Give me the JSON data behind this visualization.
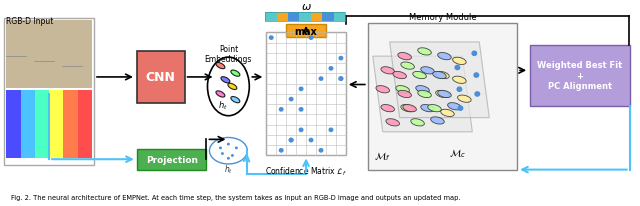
{
  "title": "",
  "caption": "2. The neural architecture of EMPNet. At each time step, the system takes as input an RGB-D image and outputs an updated map.",
  "fig_label": "Fig.",
  "background_color": "#ffffff",
  "rgb_d_label": "RGB-D Input",
  "cnn_label": "CNN",
  "cnn_color": "#e8736a",
  "point_embed_label": "Point\nEmbeddings",
  "projection_label": "Projection",
  "projection_color": "#4caf50",
  "confidence_label": "Confidence Matrix",
  "lf_label": "$\\mathcal{L}_f$",
  "memory_label": "Memory Module",
  "mf_label": "$\\mathcal{M}_f$",
  "mc_label": "$\\mathcal{M}_c$",
  "max_label": "max",
  "max_color": "#f5a623",
  "omega_label": "$\\omega$",
  "weighted_label": "Weighted Best Fit\n+\nPC Alignment",
  "weighted_color": "#b39ddb",
  "arrow_color": "#000000",
  "blue_arrow_color": "#4fc3f7"
}
